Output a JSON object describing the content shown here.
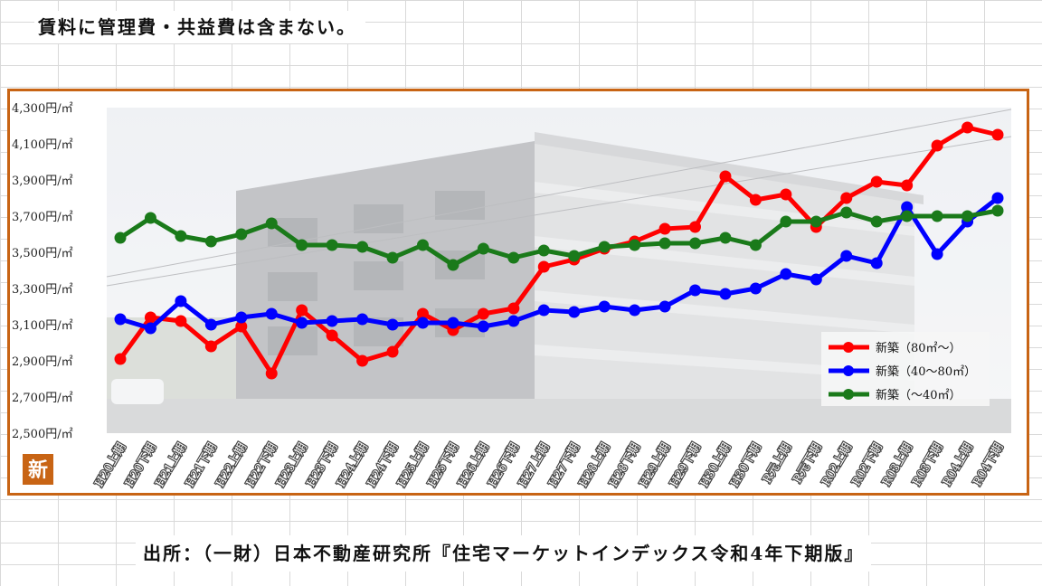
{
  "note": "賃料に管理費・共益費は含まない。",
  "source": "出所：（一財）日本不動産研究所『住宅マーケットインデックス令和4年下期版』",
  "badge": "新",
  "chart_data": {
    "type": "line",
    "title": "",
    "xlabel": "",
    "ylabel": "",
    "ylim": [
      2500,
      4300
    ],
    "yticks": [
      2500,
      2700,
      2900,
      3100,
      3300,
      3500,
      3700,
      3900,
      4100,
      4300
    ],
    "ytick_labels": [
      "2,500円/㎡",
      "2,700円/㎡",
      "2,900円/㎡",
      "3,100円/㎡",
      "3,300円/㎡",
      "3,500円/㎡",
      "3,700円/㎡",
      "3,900円/㎡",
      "4,100円/㎡",
      "4,300円/㎡"
    ],
    "categories": [
      "H20上期",
      "H20下期",
      "H21上期",
      "H21下期",
      "H22上期",
      "H22下期",
      "H23上期",
      "H23下期",
      "H24上期",
      "H24下期",
      "H25上期",
      "H25下期",
      "H26上期",
      "H26下期",
      "H27上期",
      "H27下期",
      "H28上期",
      "H28下期",
      "H29上期",
      "H29下期",
      "H30上期",
      "H30下期",
      "R元上期",
      "R元下期",
      "R02上期",
      "R02下期",
      "R03上期",
      "R03下期",
      "R04上期",
      "R04下期"
    ],
    "legend_position": "bottom-right",
    "grid": false,
    "series": [
      {
        "name": "新築（80㎡～）",
        "color": "#ff0000",
        "values": [
          2910,
          3140,
          3120,
          2980,
          3090,
          2830,
          3180,
          3040,
          2900,
          2950,
          3160,
          3070,
          3160,
          3190,
          3420,
          3460,
          3520,
          3560,
          3630,
          3640,
          3920,
          3790,
          3820,
          3640,
          3800,
          3890,
          3870,
          4090,
          4190,
          4150
        ]
      },
      {
        "name": "新築（40～80㎡）",
        "color": "#0000ff",
        "values": [
          3130,
          3080,
          3230,
          3100,
          3140,
          3160,
          3110,
          3120,
          3130,
          3100,
          3110,
          3110,
          3090,
          3120,
          3180,
          3170,
          3200,
          3180,
          3200,
          3290,
          3270,
          3300,
          3380,
          3350,
          3480,
          3440,
          3750,
          3490,
          3670,
          3800
        ]
      },
      {
        "name": "新築（～40㎡）",
        "color": "#1a7a1a",
        "values": [
          3580,
          3690,
          3590,
          3560,
          3600,
          3660,
          3540,
          3540,
          3530,
          3470,
          3540,
          3430,
          3520,
          3470,
          3510,
          3480,
          3530,
          3540,
          3550,
          3550,
          3580,
          3540,
          3670,
          3670,
          3720,
          3670,
          3700,
          3700,
          3700,
          3730
        ]
      }
    ]
  }
}
